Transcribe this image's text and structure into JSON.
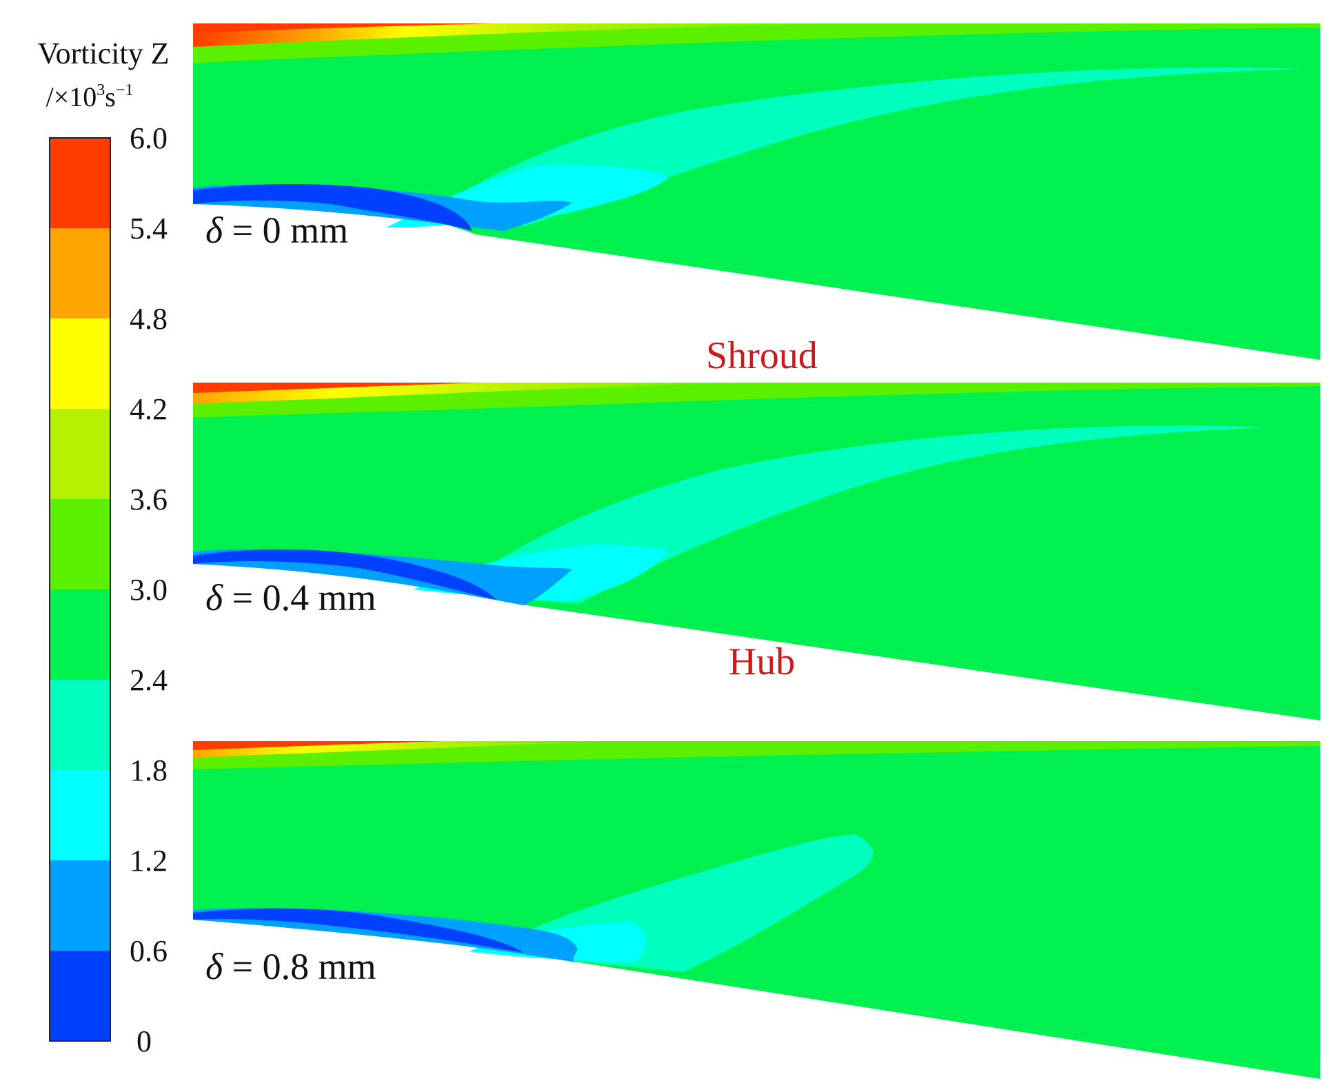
{
  "legend": {
    "title": "Vorticity Z",
    "unit_prefix": "/×10",
    "unit_exp": "3",
    "unit_base": "s",
    "unit_base_exp": "−1",
    "ticks": [
      "6.0",
      "5.4",
      "4.8",
      "4.2",
      "3.6",
      "3.0",
      "2.4",
      "1.8",
      "1.2",
      "0.6",
      "0"
    ],
    "colors": [
      "#ff3c00",
      "#ffa500",
      "#ffff00",
      "#b4f000",
      "#5af000",
      "#00f050",
      "#00ffbe",
      "#00ffff",
      "#00a0ff",
      "#0040ff"
    ]
  },
  "panels": [
    {
      "delta_symbol": "δ",
      "delta_text": " = 0 mm"
    },
    {
      "delta_symbol": "δ",
      "delta_text": " = 0.4 mm"
    },
    {
      "delta_symbol": "δ",
      "delta_text": " = 0.8 mm"
    }
  ],
  "labels": {
    "shroud": "Shroud",
    "hub": "Hub"
  },
  "label_color": "#cc1a1a"
}
